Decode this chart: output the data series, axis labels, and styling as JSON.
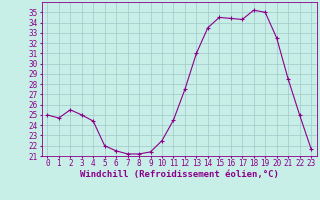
{
  "x": [
    0,
    1,
    2,
    3,
    4,
    5,
    6,
    7,
    8,
    9,
    10,
    11,
    12,
    13,
    14,
    15,
    16,
    17,
    18,
    19,
    20,
    21,
    22,
    23
  ],
  "y": [
    25.0,
    24.7,
    25.5,
    25.0,
    24.4,
    22.0,
    21.5,
    21.2,
    21.2,
    21.4,
    22.5,
    24.5,
    27.5,
    31.0,
    33.5,
    34.5,
    34.4,
    34.3,
    35.2,
    35.0,
    32.5,
    28.5,
    25.0,
    21.7
  ],
  "line_color": "#8b008b",
  "marker": "+",
  "marker_size": 3,
  "bg_color": "#c8eee8",
  "grid_color": "#a0c8c8",
  "xlabel": "Windchill (Refroidissement éolien,°C)",
  "ylim": [
    21,
    36
  ],
  "xlim": [
    -0.5,
    23.5
  ],
  "yticks": [
    21,
    22,
    23,
    24,
    25,
    26,
    27,
    28,
    29,
    30,
    31,
    32,
    33,
    34,
    35
  ],
  "xticks": [
    0,
    1,
    2,
    3,
    4,
    5,
    6,
    7,
    8,
    9,
    10,
    11,
    12,
    13,
    14,
    15,
    16,
    17,
    18,
    19,
    20,
    21,
    22,
    23
  ],
  "tick_fontsize": 5.5,
  "xlabel_fontsize": 6.5,
  "tick_color": "#8b008b",
  "spine_color": "#8b008b",
  "linewidth": 0.8,
  "markeredgewidth": 0.8
}
